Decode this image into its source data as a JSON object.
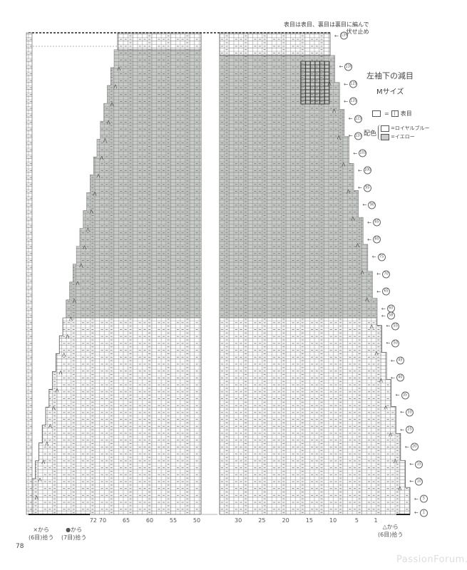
{
  "note": {
    "line1": "表目は表目、裏目は裏目に編んで",
    "line2": "伏せ止め"
  },
  "title": "左袖下の減目",
  "size": "Mサイズ",
  "legend": {
    "symbol": "=",
    "symbol_glyph": "|",
    "symbol_label": "表目",
    "color_heading": "配色",
    "colors": [
      {
        "label": "=ロイヤルブルー",
        "color": "#ffffff"
      },
      {
        "label": "=イエロー",
        "color": "#c9ccc9"
      }
    ]
  },
  "row_markers": [
    "139",
    "130",
    "125",
    "120",
    "115",
    "110",
    "105",
    "100",
    "95",
    "90",
    "85",
    "80",
    "75",
    "70",
    "65",
    "60",
    "58",
    "55",
    "50",
    "45",
    "40",
    "35",
    "30",
    "25",
    "20",
    "15",
    "10",
    "5",
    "1"
  ],
  "column_labels_left": [
    "72",
    "70",
    "65",
    "60",
    "55",
    "50"
  ],
  "column_labels_right": [
    "30",
    "25",
    "20",
    "15",
    "10",
    "5",
    "1"
  ],
  "pickups": {
    "x": {
      "line1": "×から",
      "line2": "(6目)拾う"
    },
    "dot": {
      "line1": "●から",
      "line2": "(7目)拾う"
    },
    "triangle": {
      "line1": "△から",
      "line2": "(6目)拾う"
    }
  },
  "page_number": "78",
  "watermark": "PassionForum.ru",
  "colors": {
    "grid": "#8a8d8a",
    "shade": "#c9ccc9",
    "bold": "#333333"
  }
}
